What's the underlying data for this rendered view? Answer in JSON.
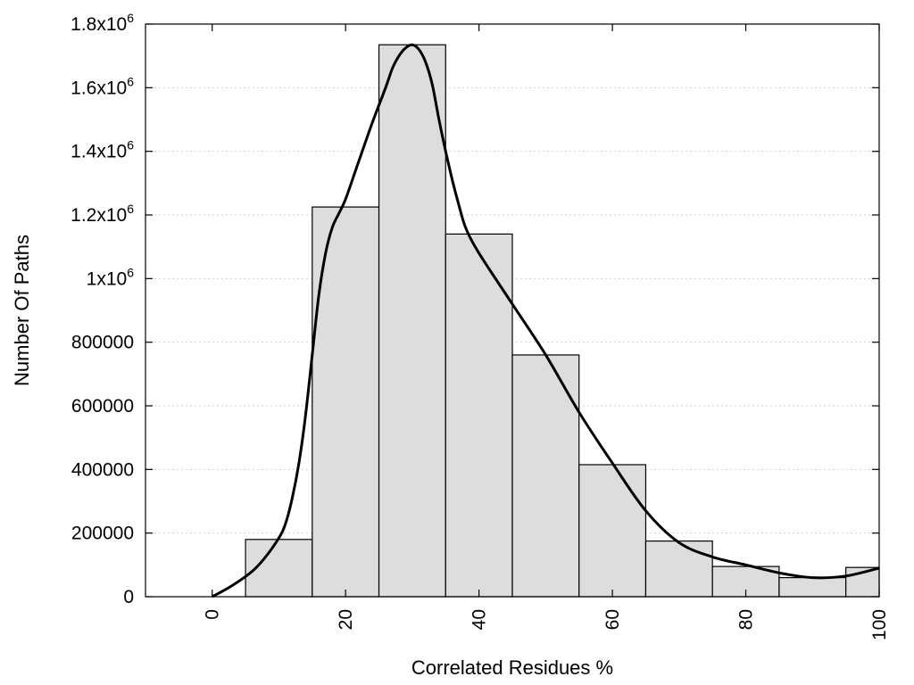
{
  "chart_data": {
    "type": "bar",
    "title": "",
    "xlabel": "Correlated Residues %",
    "ylabel": "Number Of Paths",
    "xlim": [
      -10,
      100
    ],
    "ylim": [
      0,
      1800000
    ],
    "grid": true,
    "bin_width": 10,
    "bins": [
      {
        "center": 10,
        "value": 180000
      },
      {
        "center": 20,
        "value": 1225000
      },
      {
        "center": 30,
        "value": 1735000
      },
      {
        "center": 40,
        "value": 1140000
      },
      {
        "center": 50,
        "value": 760000
      },
      {
        "center": 60,
        "value": 415000
      },
      {
        "center": 70,
        "value": 175000
      },
      {
        "center": 80,
        "value": 95000
      },
      {
        "center": 90,
        "value": 60000
      },
      {
        "center": 100,
        "value": 92000
      }
    ],
    "curve": {
      "x": [
        0,
        3,
        6,
        8,
        10,
        11,
        12,
        13,
        14,
        15,
        16,
        17,
        18,
        19,
        20,
        22,
        24,
        26,
        27,
        28,
        29,
        30,
        31,
        32,
        33,
        34,
        35,
        36,
        37,
        38,
        40,
        45,
        50,
        55,
        60,
        65,
        70,
        75,
        80,
        85,
        90,
        95,
        100
      ],
      "y": [
        0,
        35000,
        80000,
        125000,
        185000,
        230000,
        310000,
        420000,
        570000,
        760000,
        950000,
        1080000,
        1160000,
        1205000,
        1250000,
        1370000,
        1490000,
        1600000,
        1660000,
        1700000,
        1725000,
        1735000,
        1720000,
        1680000,
        1610000,
        1500000,
        1400000,
        1310000,
        1230000,
        1160000,
        1080000,
        920000,
        760000,
        580000,
        420000,
        270000,
        170000,
        125000,
        100000,
        75000,
        60000,
        65000,
        90000
      ]
    },
    "y_ticks": [
      {
        "value": 0,
        "base": "0",
        "exp": ""
      },
      {
        "value": 200000,
        "base": "200000",
        "exp": ""
      },
      {
        "value": 400000,
        "base": "400000",
        "exp": ""
      },
      {
        "value": 600000,
        "base": "600000",
        "exp": ""
      },
      {
        "value": 800000,
        "base": "800000",
        "exp": ""
      },
      {
        "value": 1000000,
        "base": "1x10",
        "exp": "6"
      },
      {
        "value": 1200000,
        "base": "1.2x10",
        "exp": "6"
      },
      {
        "value": 1400000,
        "base": "1.4x10",
        "exp": "6"
      },
      {
        "value": 1600000,
        "base": "1.6x10",
        "exp": "6"
      },
      {
        "value": 1800000,
        "base": "1.8x10",
        "exp": "6"
      }
    ],
    "x_ticks": [
      {
        "value": 0,
        "label": "0"
      },
      {
        "value": 20,
        "label": "20"
      },
      {
        "value": 40,
        "label": "40"
      },
      {
        "value": 60,
        "label": "60"
      },
      {
        "value": 80,
        "label": "80"
      },
      {
        "value": 100,
        "label": "100"
      }
    ]
  }
}
